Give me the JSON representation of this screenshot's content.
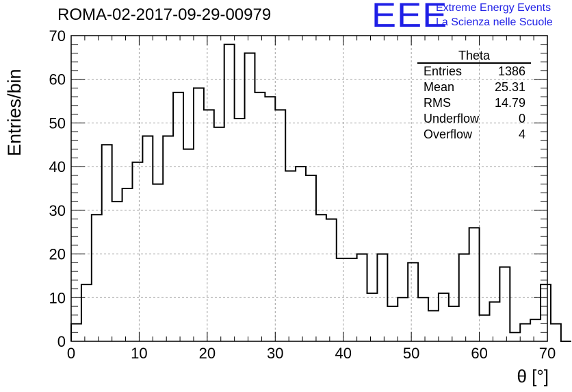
{
  "header": {
    "run_title": "ROMA-02-2017-09-29-00979",
    "logo_text": "EEE",
    "logo_line1": "Extreme Energy Events",
    "logo_line2": "La Scienza nelle Scuole",
    "logo_color": "#1f1fe6"
  },
  "stats_box": {
    "title": "Theta",
    "rows": [
      {
        "label": "Entries",
        "value": "1386"
      },
      {
        "label": "Mean",
        "value": "25.31"
      },
      {
        "label": "RMS",
        "value": "14.79"
      },
      {
        "label": "Underflow",
        "value": "0"
      },
      {
        "label": "Overflow",
        "value": "4"
      }
    ]
  },
  "chart_data": {
    "type": "bar",
    "style": "step-histogram",
    "xlabel": "θ [°]",
    "ylabel": "Entries/bin",
    "xlim": [
      0,
      70
    ],
    "ylim": [
      0,
      70
    ],
    "grid": true,
    "bin_width": 1.5,
    "bin_edges_start": 0,
    "x_ticks": [
      "0",
      "10",
      "20",
      "30",
      "40",
      "50",
      "60",
      "70"
    ],
    "y_ticks": [
      "0",
      "10",
      "20",
      "30",
      "40",
      "50",
      "60",
      "70"
    ],
    "values": [
      4,
      13,
      29,
      45,
      32,
      35,
      41,
      47,
      36,
      47,
      57,
      44,
      58,
      53,
      49,
      68,
      51,
      66,
      57,
      56,
      53,
      39,
      40,
      38,
      29,
      28,
      19,
      19,
      20,
      11,
      20,
      8,
      10,
      18,
      10,
      7,
      11,
      8,
      20,
      26,
      6,
      9,
      17,
      2,
      4,
      5,
      13,
      4,
      0
    ]
  }
}
